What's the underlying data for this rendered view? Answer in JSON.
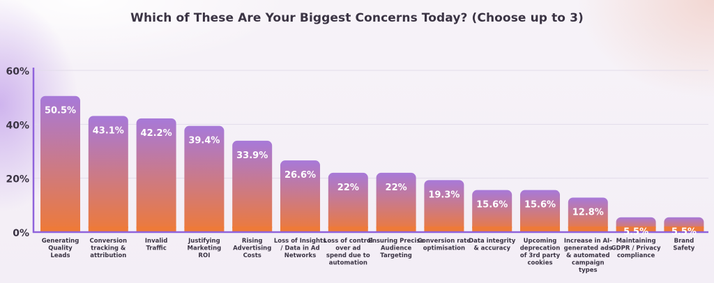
{
  "chart_data": {
    "type": "bar",
    "title": "Which of These Are Your Biggest Concerns Today? (Choose up to 3)",
    "xlabel": "",
    "ylabel": "",
    "ylim": [
      0,
      60
    ],
    "y_ticks": [
      0,
      20,
      40,
      60
    ],
    "y_tick_labels": [
      "0%",
      "20%",
      "40%",
      "60%"
    ],
    "grid": true,
    "categories": [
      "Generating Quality Leads",
      "Conversion tracking & attribution",
      "Invalid Traffic",
      "Justifying Marketing ROI",
      "Rising Advertising Costs",
      "Loss of Insights / Data in Ad Networks",
      "Loss of control over ad spend due to automation",
      "Ensuring Precise Audience Targeting",
      "Conversion rate optimisation",
      "Data integrity & accuracy",
      "Upcoming deprecation of 3rd party cookies",
      "Increase in AI-generated ads & automated campaign types",
      "Maintaining GDPR / Privacy compliance",
      "Brand Safety"
    ],
    "category_lines": [
      [
        "Generating",
        "Quality",
        "Leads"
      ],
      [
        "Conversion",
        "tracking &",
        "attribution"
      ],
      [
        "Invalid",
        "Traffic"
      ],
      [
        "Justifying",
        "Marketing",
        "ROI"
      ],
      [
        "Rising",
        "Advertising",
        "Costs"
      ],
      [
        "Loss of Insights",
        "/ Data in Ad",
        "Networks"
      ],
      [
        "Loss of control",
        "over ad",
        "spend due to",
        "automation"
      ],
      [
        "Ensuring Precise",
        "Audience",
        "Targeting"
      ],
      [
        "Conversion rate",
        "optimisation"
      ],
      [
        "Data integrity",
        "& accuracy"
      ],
      [
        "Upcoming",
        "deprecation",
        "of 3rd party",
        "cookies"
      ],
      [
        "Increase in AI-",
        "generated ads",
        "& automated",
        "campaign",
        "types"
      ],
      [
        "Maintaining",
        "GDPR / Privacy",
        "compliance"
      ],
      [
        "Brand",
        "Safety"
      ]
    ],
    "values": [
      50.5,
      43.1,
      42.2,
      39.4,
      33.9,
      26.6,
      22,
      22,
      19.3,
      15.6,
      15.6,
      12.8,
      5.5,
      5.5
    ],
    "value_labels": [
      "50.5%",
      "43.1%",
      "42.2%",
      "39.4%",
      "33.9%",
      "26.6%",
      "22%",
      "22%",
      "19.3%",
      "15.6%",
      "15.6%",
      "12.8%",
      "5.5%",
      "5.5%"
    ],
    "colors": {
      "bar_top": "#a779d9",
      "bar_bottom": "#ee7a38",
      "axis": "#8f63db",
      "grid": "#e2dcea",
      "text": "#3b3444",
      "value_text": "#ffffff"
    }
  }
}
